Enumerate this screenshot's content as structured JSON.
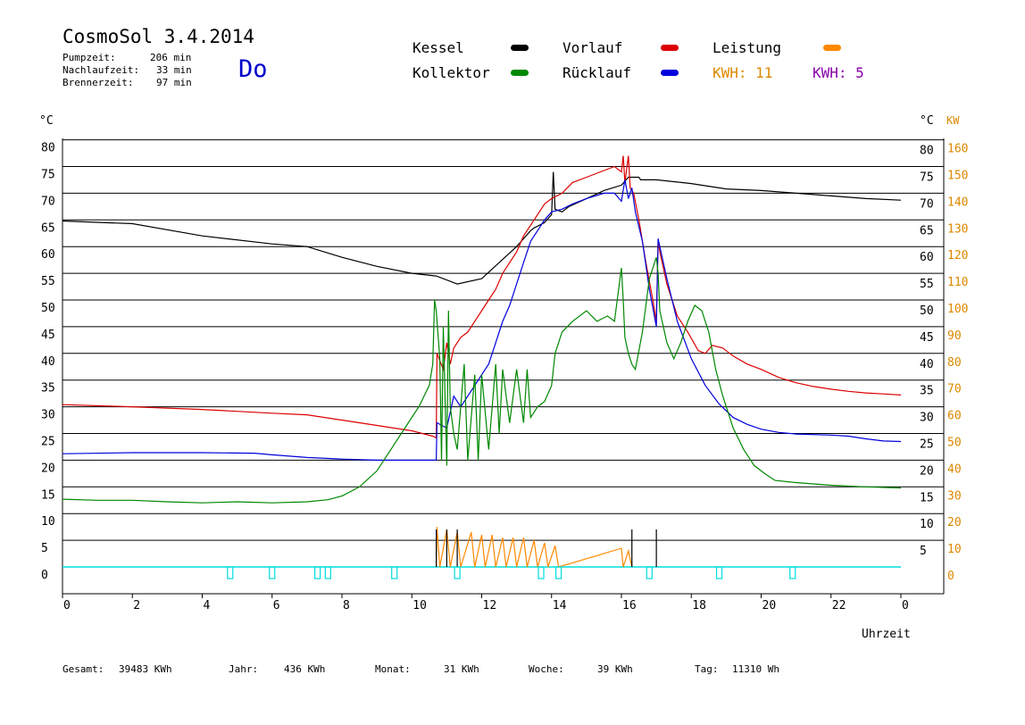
{
  "header": {
    "title": "CosmoSol 3.4.2014",
    "stats": [
      {
        "label": "Pumpzeit:",
        "value": "206 min"
      },
      {
        "label": "Nachlaufzeit:",
        "value": "33 min"
      },
      {
        "label": "Brennerzeit:",
        "value": "97 min"
      }
    ],
    "day": "Do"
  },
  "legend": {
    "items": [
      {
        "label": "Kessel",
        "color": "#000000"
      },
      {
        "label": "Vorlauf",
        "color": "#dd0000"
      },
      {
        "label": "Leistung",
        "color": "#ff8800"
      },
      {
        "label": "Kollektor",
        "color": "#008800"
      },
      {
        "label": "Rücklauf",
        "color": "#0000dd"
      }
    ],
    "kwh1": {
      "text": "KWH: 11",
      "color": "#dd8800"
    },
    "kwh2": {
      "text": "KWH: 5",
      "color": "#8800aa"
    }
  },
  "footer": {
    "gesamt": {
      "label": "Gesamt:",
      "value": "39483 KWh"
    },
    "jahr": {
      "label": "Jahr:",
      "value": "436 KWh"
    },
    "monat": {
      "label": "Monat:",
      "value": "31 KWh"
    },
    "woche": {
      "label": "Woche:",
      "value": "39 KWh"
    },
    "tag": {
      "label": "Tag:",
      "value": "11310 Wh"
    }
  },
  "chart_data": {
    "type": "line",
    "xlabel": "Uhrzeit",
    "ylabel": "°C",
    "y2label": "KW",
    "xlim": [
      0,
      24
    ],
    "ylim": [
      0,
      85
    ],
    "y2lim": [
      0,
      170
    ],
    "x_ticks": [
      "0",
      "2",
      "4",
      "6",
      "8",
      "10",
      "12",
      "14",
      "16",
      "18",
      "20",
      "22",
      "0"
    ],
    "y_ticks": [
      "0",
      "5",
      "10",
      "15",
      "20",
      "25",
      "30",
      "35",
      "40",
      "45",
      "50",
      "55",
      "60",
      "65",
      "70",
      "75",
      "80"
    ],
    "y2_ticks": [
      "0",
      "10",
      "20",
      "30",
      "40",
      "50",
      "60",
      "70",
      "80",
      "90",
      "100",
      "110",
      "120",
      "130",
      "140",
      "150",
      "160"
    ],
    "grid": true,
    "series": [
      {
        "name": "Kessel",
        "color": "#000000",
        "points": [
          [
            0,
            64.8
          ],
          [
            2,
            64.3
          ],
          [
            4,
            62
          ],
          [
            6,
            60.5
          ],
          [
            7,
            60
          ],
          [
            8,
            58
          ],
          [
            9,
            56.3
          ],
          [
            10,
            55
          ],
          [
            10.7,
            54.5
          ],
          [
            11.3,
            53
          ],
          [
            12,
            54
          ],
          [
            12.5,
            57
          ],
          [
            13,
            60
          ],
          [
            13.4,
            63
          ],
          [
            13.5,
            63.5
          ],
          [
            13.8,
            64.5
          ],
          [
            14,
            66
          ],
          [
            14.05,
            74
          ],
          [
            14.1,
            67
          ],
          [
            14.3,
            66.5
          ],
          [
            14.5,
            67.5
          ],
          [
            15,
            69
          ],
          [
            15.5,
            70.5
          ],
          [
            16,
            71.5
          ],
          [
            16.2,
            73
          ],
          [
            16.5,
            73
          ],
          [
            16.55,
            72.5
          ],
          [
            17,
            72.5
          ],
          [
            18,
            71.8
          ],
          [
            19,
            70.8
          ],
          [
            20,
            70.5
          ],
          [
            21,
            70
          ],
          [
            22,
            69.5
          ],
          [
            23,
            69
          ],
          [
            24,
            68.7
          ]
        ]
      },
      {
        "name": "Vorlauf",
        "color": "#dd0000",
        "points": [
          [
            0,
            30.4
          ],
          [
            2,
            30
          ],
          [
            4,
            29.5
          ],
          [
            6,
            28.8
          ],
          [
            7,
            28.5
          ],
          [
            8,
            27.5
          ],
          [
            9,
            26.5
          ],
          [
            10,
            25.5
          ],
          [
            10.6,
            24.5
          ],
          [
            10.7,
            24.2
          ],
          [
            10.72,
            40
          ],
          [
            10.9,
            37
          ],
          [
            11,
            42
          ],
          [
            11.1,
            38
          ],
          [
            11.2,
            41
          ],
          [
            11.4,
            43
          ],
          [
            11.6,
            44
          ],
          [
            11.8,
            46
          ],
          [
            12,
            48
          ],
          [
            12.2,
            50
          ],
          [
            12.4,
            52
          ],
          [
            12.6,
            55
          ],
          [
            12.8,
            57
          ],
          [
            13,
            59
          ],
          [
            13.2,
            62
          ],
          [
            13.4,
            64
          ],
          [
            13.6,
            66
          ],
          [
            13.8,
            68
          ],
          [
            14,
            69
          ],
          [
            14.3,
            70
          ],
          [
            14.6,
            72
          ],
          [
            15,
            73
          ],
          [
            15.4,
            74
          ],
          [
            15.8,
            75
          ],
          [
            16,
            74
          ],
          [
            16.05,
            77
          ],
          [
            16.1,
            72
          ],
          [
            16.2,
            77
          ],
          [
            16.25,
            71
          ],
          [
            16.35,
            70
          ],
          [
            16.5,
            65
          ],
          [
            16.7,
            57
          ],
          [
            16.9,
            50
          ],
          [
            17,
            46
          ],
          [
            17.05,
            61
          ],
          [
            17.1,
            59
          ],
          [
            17.3,
            53
          ],
          [
            17.6,
            47
          ],
          [
            17.9,
            44
          ],
          [
            18.2,
            40.5
          ],
          [
            18.4,
            40
          ],
          [
            18.6,
            41.5
          ],
          [
            18.9,
            41
          ],
          [
            19.2,
            39.5
          ],
          [
            19.6,
            38
          ],
          [
            20,
            37
          ],
          [
            20.5,
            35.5
          ],
          [
            21,
            34.5
          ],
          [
            21.5,
            33.8
          ],
          [
            22,
            33.3
          ],
          [
            22.5,
            32.9
          ],
          [
            23,
            32.6
          ],
          [
            23.5,
            32.4
          ],
          [
            24,
            32.2
          ]
        ]
      },
      {
        "name": "Rücklauf",
        "color": "#0000dd",
        "points": [
          [
            0,
            21.2
          ],
          [
            2,
            21.4
          ],
          [
            4,
            21.4
          ],
          [
            5.5,
            21.3
          ],
          [
            6,
            21
          ],
          [
            7,
            20.5
          ],
          [
            8,
            20.2
          ],
          [
            9,
            20
          ],
          [
            10,
            20
          ],
          [
            10.7,
            20
          ],
          [
            10.72,
            27
          ],
          [
            11,
            26
          ],
          [
            11.2,
            32
          ],
          [
            11.4,
            30
          ],
          [
            11.7,
            33
          ],
          [
            12,
            36
          ],
          [
            12.2,
            38
          ],
          [
            12.4,
            42
          ],
          [
            12.6,
            46
          ],
          [
            12.8,
            49
          ],
          [
            13,
            53
          ],
          [
            13.2,
            57
          ],
          [
            13.4,
            61
          ],
          [
            13.6,
            63
          ],
          [
            13.8,
            65
          ],
          [
            14,
            66.5
          ],
          [
            14.3,
            67
          ],
          [
            14.6,
            68
          ],
          [
            15,
            69
          ],
          [
            15.5,
            70
          ],
          [
            15.8,
            70
          ],
          [
            16,
            68.5
          ],
          [
            16.1,
            72.5
          ],
          [
            16.2,
            69
          ],
          [
            16.3,
            71
          ],
          [
            16.4,
            66.5
          ],
          [
            16.6,
            61
          ],
          [
            16.8,
            52
          ],
          [
            17,
            45
          ],
          [
            17.05,
            61.5
          ],
          [
            17.1,
            60
          ],
          [
            17.3,
            54
          ],
          [
            17.6,
            46
          ],
          [
            18,
            39
          ],
          [
            18.4,
            34
          ],
          [
            18.8,
            30.5
          ],
          [
            19.2,
            28
          ],
          [
            19.6,
            26.7
          ],
          [
            20,
            25.8
          ],
          [
            20.5,
            25.2
          ],
          [
            21,
            24.9
          ],
          [
            22,
            24.7
          ],
          [
            22.5,
            24.5
          ],
          [
            23,
            24
          ],
          [
            23.5,
            23.6
          ],
          [
            24,
            23.5
          ]
        ]
      },
      {
        "name": "Kollektor",
        "color": "#008800",
        "points": [
          [
            0,
            12.7
          ],
          [
            1,
            12.5
          ],
          [
            2,
            12.5
          ],
          [
            3,
            12.2
          ],
          [
            4,
            12
          ],
          [
            5,
            12.2
          ],
          [
            6,
            12
          ],
          [
            7,
            12.2
          ],
          [
            7.6,
            12.6
          ],
          [
            8,
            13.3
          ],
          [
            8.5,
            15
          ],
          [
            9,
            18
          ],
          [
            9.4,
            22
          ],
          [
            9.8,
            26
          ],
          [
            10.2,
            30
          ],
          [
            10.5,
            34
          ],
          [
            10.6,
            38
          ],
          [
            10.65,
            50
          ],
          [
            10.7,
            48
          ],
          [
            10.8,
            39
          ],
          [
            10.85,
            20
          ],
          [
            10.9,
            45
          ],
          [
            11,
            19
          ],
          [
            11.05,
            48
          ],
          [
            11.1,
            30
          ],
          [
            11.2,
            25
          ],
          [
            11.3,
            22
          ],
          [
            11.5,
            38
          ],
          [
            11.6,
            20
          ],
          [
            11.8,
            36
          ],
          [
            11.9,
            20
          ],
          [
            12,
            36
          ],
          [
            12.2,
            22
          ],
          [
            12.4,
            38
          ],
          [
            12.5,
            25
          ],
          [
            12.6,
            37
          ],
          [
            12.8,
            27
          ],
          [
            13,
            37
          ],
          [
            13.2,
            27
          ],
          [
            13.3,
            37
          ],
          [
            13.4,
            28
          ],
          [
            13.6,
            30
          ],
          [
            13.8,
            31
          ],
          [
            14,
            34
          ],
          [
            14.1,
            40
          ],
          [
            14.3,
            44
          ],
          [
            14.6,
            46
          ],
          [
            15,
            48
          ],
          [
            15.3,
            46
          ],
          [
            15.6,
            47
          ],
          [
            15.8,
            46
          ],
          [
            16,
            56
          ],
          [
            16.05,
            50
          ],
          [
            16.1,
            43
          ],
          [
            16.2,
            40
          ],
          [
            16.3,
            38
          ],
          [
            16.4,
            37
          ],
          [
            16.6,
            44
          ],
          [
            16.8,
            54
          ],
          [
            17,
            58
          ],
          [
            17.05,
            55
          ],
          [
            17.1,
            48
          ],
          [
            17.3,
            42
          ],
          [
            17.5,
            39
          ],
          [
            17.7,
            42
          ],
          [
            17.9,
            46
          ],
          [
            18.1,
            49
          ],
          [
            18.3,
            48
          ],
          [
            18.5,
            44
          ],
          [
            18.7,
            37
          ],
          [
            18.9,
            32
          ],
          [
            19.2,
            26
          ],
          [
            19.5,
            22
          ],
          [
            19.8,
            19
          ],
          [
            20.1,
            17.5
          ],
          [
            20.4,
            16.2
          ],
          [
            21,
            15.8
          ],
          [
            22,
            15.3
          ],
          [
            23,
            15
          ],
          [
            24,
            14.8
          ]
        ]
      },
      {
        "name": "Leistung",
        "color": "#ff8800",
        "points": [
          [
            10.7,
            0
          ],
          [
            10.72,
            15
          ],
          [
            10.8,
            0
          ],
          [
            11,
            14
          ],
          [
            11.1,
            0
          ],
          [
            11.3,
            13
          ],
          [
            11.4,
            0
          ],
          [
            11.7,
            13
          ],
          [
            11.8,
            0
          ],
          [
            12,
            12
          ],
          [
            12.1,
            0
          ],
          [
            12.3,
            12
          ],
          [
            12.4,
            0
          ],
          [
            12.6,
            11
          ],
          [
            12.7,
            0
          ],
          [
            12.9,
            11
          ],
          [
            13,
            0
          ],
          [
            13.2,
            11
          ],
          [
            13.3,
            0
          ],
          [
            13.5,
            10
          ],
          [
            13.6,
            0
          ],
          [
            13.8,
            9
          ],
          [
            13.9,
            0
          ],
          [
            14.1,
            8
          ],
          [
            14.2,
            0
          ],
          [
            16,
            7
          ],
          [
            16.05,
            0
          ],
          [
            16.2,
            6
          ],
          [
            16.3,
            0
          ]
        ]
      }
    ],
    "burner_markers_hours": [
      10.7,
      11.0,
      11.3,
      16.3,
      17.0
    ],
    "cyan_markers_hours": [
      4.8,
      6.0,
      7.3,
      7.6,
      9.5,
      11.3,
      13.7,
      14.2,
      16.8,
      18.8,
      20.9
    ]
  }
}
